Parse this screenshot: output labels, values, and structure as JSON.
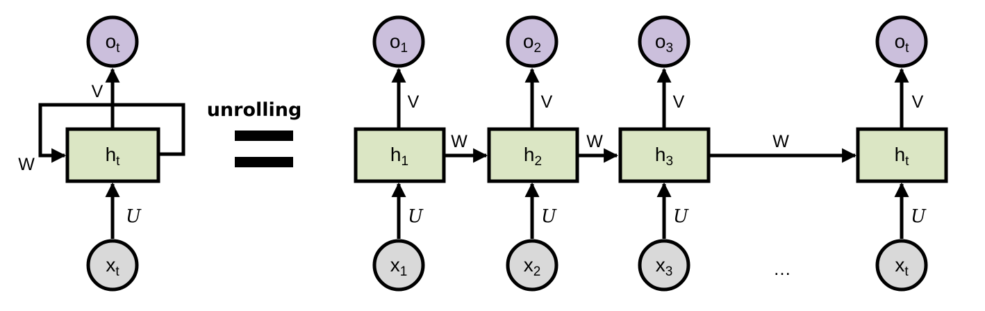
{
  "colors": {
    "output_fill": "#cbbfdc",
    "hidden_fill": "#dbe6c4",
    "input_fill": "#d9d9d9",
    "stroke": "#000000"
  },
  "folded": {
    "output": {
      "base": "o",
      "sub": "t"
    },
    "hidden": {
      "base": "h",
      "sub": "t"
    },
    "input": {
      "base": "x",
      "sub": "t"
    },
    "v_label": "V",
    "w_label": "W",
    "u_label": "U"
  },
  "center": {
    "title": "unrolling",
    "equals_symbol": "="
  },
  "unrolled": {
    "steps": [
      {
        "output": {
          "base": "o",
          "sub": "1"
        },
        "hidden": {
          "base": "h",
          "sub": "1"
        },
        "input": {
          "base": "x",
          "sub": "1"
        },
        "v_label": "V",
        "u_label": "U"
      },
      {
        "output": {
          "base": "o",
          "sub": "2"
        },
        "hidden": {
          "base": "h",
          "sub": "2"
        },
        "input": {
          "base": "x",
          "sub": "2"
        },
        "v_label": "V",
        "u_label": "U"
      },
      {
        "output": {
          "base": "o",
          "sub": "3"
        },
        "hidden": {
          "base": "h",
          "sub": "3"
        },
        "input": {
          "base": "x",
          "sub": "3"
        },
        "v_label": "V",
        "u_label": "U"
      },
      {
        "output": {
          "base": "o",
          "sub": "t"
        },
        "hidden": {
          "base": "h",
          "sub": "t"
        },
        "input": {
          "base": "x",
          "sub": "t"
        },
        "v_label": "V",
        "u_label": "U"
      }
    ],
    "w_labels": [
      "W",
      "W",
      "W"
    ],
    "ellipsis": "…"
  }
}
